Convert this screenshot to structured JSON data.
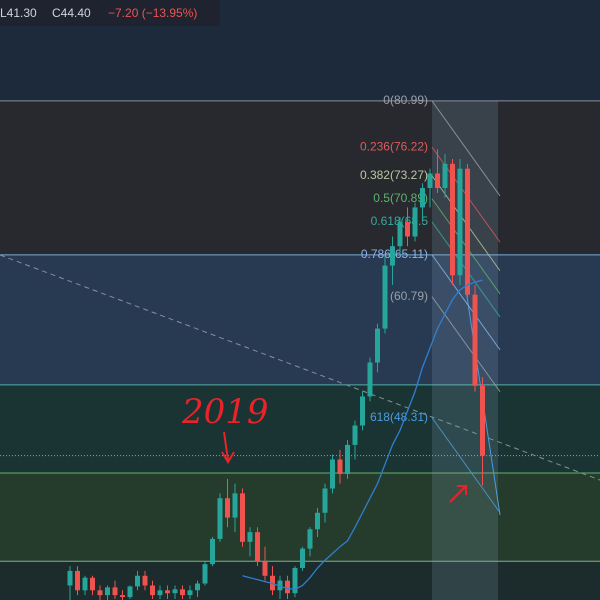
{
  "header": {
    "items": [
      {
        "text": "L41.30",
        "color": "#d1d4dc"
      },
      {
        "text": "C44.40",
        "color": "#d1d4dc"
      },
      {
        "text": "−7.20 (−13.95%)",
        "color": "#ef5350"
      }
    ]
  },
  "chart_data": {
    "type": "candlestick",
    "ylim": [
      29.5,
      91.4
    ],
    "up_color": "#26a69a",
    "down_color": "#ef5350",
    "open": [
      31,
      32.5,
      30.5,
      31.8,
      30.5,
      30,
      30.8,
      30,
      29.8,
      30.9,
      32,
      31,
      30,
      30.5,
      30.2,
      30.6,
      30,
      30.5,
      31.2,
      33.2,
      35.8,
      40,
      38,
      40.5,
      35.5,
      36.5,
      33.5,
      32,
      30.5,
      31.5,
      30.2,
      32.8,
      34.8,
      36.8,
      38.5,
      41,
      44,
      42.5,
      45.5,
      47.5,
      50.5,
      54,
      57.5,
      64,
      66,
      68.5,
      67,
      70,
      72,
      73.5,
      72,
      74.5,
      63,
      74,
      61,
      51.6
    ],
    "high": [
      33,
      33,
      32,
      32,
      31,
      31,
      31.5,
      30.5,
      31,
      32.5,
      32.5,
      31.5,
      31,
      31,
      31,
      31,
      31,
      31.5,
      33.5,
      36,
      40.5,
      42,
      41.5,
      41,
      37,
      37,
      35,
      33,
      32,
      32,
      33,
      35,
      37,
      39,
      41.5,
      44.5,
      45,
      46,
      48,
      51,
      54.5,
      58,
      65,
      67,
      69,
      70,
      70.5,
      72.5,
      74,
      76,
      75.5,
      75,
      75,
      74.5,
      62,
      52.5
    ],
    "low": [
      29.5,
      30,
      30,
      30,
      29.5,
      29.5,
      29.6,
      29.5,
      29.6,
      30.5,
      30.5,
      29.6,
      29.6,
      29.6,
      29.6,
      29.6,
      29.6,
      29.8,
      31,
      33,
      35.5,
      37,
      36.5,
      35,
      34,
      33,
      31.5,
      30,
      29.6,
      29.6,
      29.8,
      32.5,
      34,
      36,
      37.5,
      40.5,
      41.5,
      42,
      44,
      47,
      50,
      53,
      57,
      62,
      65,
      66,
      66.5,
      68.5,
      70,
      71.5,
      71,
      62,
      62,
      60.5,
      51,
      41.3
    ],
    "close": [
      32.5,
      30.5,
      31.8,
      30.5,
      30,
      30.8,
      30,
      29.8,
      30.9,
      32,
      31,
      30,
      30.5,
      30.2,
      30.6,
      30,
      30.5,
      31.2,
      33.2,
      35.8,
      40,
      38,
      40.5,
      35.5,
      36.5,
      33.5,
      32,
      30.5,
      31.5,
      30.2,
      32.8,
      34.8,
      36.8,
      38.5,
      41,
      44,
      42.5,
      45.5,
      47.5,
      50.5,
      54,
      57.5,
      64,
      66,
      68.5,
      67,
      70,
      72,
      73.5,
      72,
      74.5,
      63,
      74,
      61,
      51.6,
      44.4
    ],
    "ma": {
      "color": "#2f7fd0",
      "values": [
        null,
        null,
        null,
        null,
        null,
        null,
        null,
        null,
        null,
        null,
        null,
        null,
        null,
        null,
        null,
        null,
        null,
        null,
        null,
        null,
        null,
        null,
        null,
        32,
        31.8,
        31.6,
        31.4,
        31.2,
        30.9,
        30.7,
        30.6,
        31,
        31.8,
        32.8,
        33.6,
        34.3,
        35,
        35.6,
        37,
        38.5,
        40,
        41.5,
        43.5,
        45.5,
        47,
        49,
        51,
        53.5,
        55.5,
        57.5,
        59,
        60.5,
        61.5,
        62,
        62.3,
        62.5
      ]
    },
    "bands": [
      {
        "top": 91.4,
        "bottom": 80.99,
        "color": "#1d2a3c",
        "line": "#8a8f98"
      },
      {
        "top": 80.99,
        "bottom": 65.11,
        "color": "#27292f",
        "line": "#7ab0e0"
      },
      {
        "top": 65.11,
        "bottom": 51.7,
        "color": "#283a52",
        "line": "#4fb0a8"
      },
      {
        "top": 51.7,
        "bottom": 42.6,
        "color": "#1a3434",
        "line": "#5fb36a"
      },
      {
        "top": 42.6,
        "bottom": 33.5,
        "color": "#253c2d",
        "line": "#7fb08a"
      },
      {
        "top": 33.5,
        "bottom": 29.5,
        "color": "#1c2b2b",
        "line": "#1c2b2b"
      }
    ],
    "price_line": 44.4,
    "fib": [
      {
        "value": 80.99,
        "label": "0(80.99)",
        "color": "#9aa0a8"
      },
      {
        "value": 76.22,
        "label": "0.236(76.22)",
        "color": "#e05a5a"
      },
      {
        "value": 73.27,
        "label": "0.382(73.27)",
        "color": "#b8c8a0"
      },
      {
        "value": 70.89,
        "label": "0.5(70.89)",
        "color": "#5fb36a"
      },
      {
        "value": 68.5,
        "label": "0.618(68.5",
        "color": "#3aa89c"
      },
      {
        "value": 65.11,
        "label": "0.786(65.11)",
        "color": "#8ab4e8"
      },
      {
        "value": 60.79,
        "label": "(60.79)",
        "color": "#9aa0a8"
      },
      {
        "value": 48.31,
        "label": "618(48.31)",
        "color": "#4a9de0"
      }
    ],
    "annotation": "2019"
  }
}
